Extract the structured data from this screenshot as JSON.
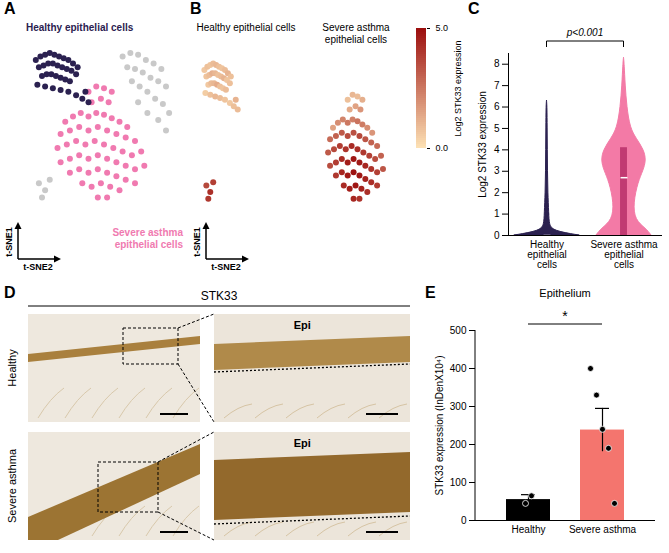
{
  "chart_data": [
    {
      "label": "A",
      "type": "scatter",
      "x_label": "t-SNE2",
      "y_label": "t-SNE1",
      "xlim": [
        0,
        100
      ],
      "ylim": [
        0,
        100
      ],
      "tick_labels": false,
      "series": [
        {
          "name": "Healthy epithelial cells",
          "color": "#2b2150",
          "x": [
            6,
            9,
            12,
            15,
            18,
            21,
            24,
            27,
            30,
            33,
            8,
            11,
            14,
            17,
            20,
            23,
            26,
            29,
            32,
            10,
            13,
            16,
            19,
            22,
            25,
            28,
            7,
            12,
            17,
            22,
            27,
            32,
            36,
            38,
            40
          ],
          "y": [
            90,
            92,
            93,
            94,
            93,
            92,
            91,
            90,
            88,
            86,
            86,
            87,
            88,
            88,
            87,
            86,
            85,
            84,
            82,
            81,
            82,
            82,
            81,
            80,
            79,
            78,
            76,
            75,
            74,
            73,
            72,
            70,
            68,
            72,
            66
          ]
        },
        {
          "name": "Severe asthma epithelial cells",
          "color": "#f07ab0",
          "x": [
            40,
            45,
            50,
            55,
            48,
            53,
            42,
            25,
            30,
            35,
            40,
            45,
            50,
            55,
            60,
            65,
            22,
            28,
            34,
            40,
            46,
            52,
            58,
            64,
            70,
            20,
            26,
            32,
            38,
            44,
            50,
            56,
            62,
            68,
            74,
            22,
            28,
            34,
            40,
            46,
            52,
            58,
            64,
            70,
            76,
            28,
            34,
            40,
            46,
            52,
            58,
            64,
            70,
            36,
            42,
            48,
            54,
            60,
            46,
            52
          ],
          "y": [
            72,
            75,
            74,
            72,
            68,
            66,
            66,
            55,
            58,
            60,
            58,
            60,
            59,
            57,
            55,
            52,
            48,
            50,
            52,
            50,
            52,
            50,
            48,
            46,
            44,
            40,
            42,
            44,
            42,
            44,
            42,
            40,
            38,
            36,
            38,
            32,
            34,
            36,
            34,
            36,
            34,
            32,
            30,
            28,
            30,
            26,
            28,
            26,
            28,
            26,
            24,
            22,
            20,
            20,
            18,
            20,
            18,
            16,
            12,
            12
          ]
        },
        {
          "name": null,
          "color": "#c9c9c9",
          "x": [
            62,
            67,
            72,
            77,
            82,
            87,
            65,
            70,
            75,
            80,
            85,
            90,
            68,
            73,
            78,
            83,
            88,
            92,
            72,
            78,
            85,
            90,
            8,
            12,
            10,
            15
          ],
          "y": [
            92,
            94,
            93,
            90,
            88,
            85,
            86,
            85,
            83,
            80,
            78,
            75,
            78,
            75,
            72,
            68,
            65,
            60,
            66,
            60,
            56,
            50,
            20,
            16,
            12,
            22
          ]
        }
      ]
    },
    {
      "label": "B",
      "type": "scatter",
      "x_label": "t-SNE2",
      "y_label": "t-SNE1",
      "xlim": [
        0,
        100
      ],
      "ylim": [
        0,
        100
      ],
      "tick_labels": false,
      "panels": [
        {
          "title": "Healthy epithelial cells",
          "x": [
            6,
            9,
            12,
            15,
            18,
            21,
            24,
            27,
            30,
            33,
            8,
            11,
            14,
            17,
            20,
            23,
            26,
            29,
            32,
            10,
            13,
            16,
            19,
            22,
            25,
            28,
            7,
            12,
            17,
            22,
            27,
            32,
            36,
            38,
            40,
            8,
            12,
            10,
            15
          ],
          "y": [
            90,
            92,
            93,
            94,
            93,
            92,
            91,
            90,
            88,
            86,
            86,
            87,
            88,
            88,
            87,
            86,
            85,
            84,
            82,
            81,
            82,
            82,
            81,
            80,
            79,
            78,
            76,
            75,
            74,
            73,
            72,
            70,
            68,
            72,
            66,
            20,
            16,
            12,
            22
          ],
          "values": [
            0.6,
            0.8,
            0.7,
            0.9,
            1.0,
            0.8,
            0.7,
            0.9,
            1.1,
            0.8,
            0.7,
            0.9,
            1.2,
            1.0,
            0.8,
            0.9,
            1.1,
            0.7,
            0.8,
            0.6,
            0.9,
            1.0,
            1.3,
            0.8,
            0.7,
            0.9,
            0.5,
            0.8,
            1.0,
            0.9,
            0.7,
            0.6,
            0.8,
            1.1,
            0.9,
            3.6,
            4.2,
            4.0,
            3.8
          ]
        },
        {
          "title": "Severe asthma epithelial cells",
          "x": [
            40,
            45,
            50,
            55,
            48,
            53,
            42,
            25,
            30,
            35,
            40,
            45,
            50,
            55,
            60,
            65,
            22,
            28,
            34,
            40,
            46,
            52,
            58,
            64,
            70,
            20,
            26,
            32,
            38,
            44,
            50,
            56,
            62,
            68,
            74,
            22,
            28,
            34,
            40,
            46,
            52,
            58,
            64,
            70,
            76,
            28,
            34,
            40,
            46,
            52,
            58,
            64,
            70,
            36,
            42,
            48,
            54,
            60,
            46,
            52
          ],
          "y": [
            72,
            75,
            74,
            72,
            68,
            66,
            66,
            55,
            58,
            60,
            58,
            60,
            59,
            57,
            55,
            52,
            48,
            50,
            52,
            50,
            52,
            50,
            48,
            46,
            44,
            40,
            42,
            44,
            42,
            44,
            42,
            40,
            38,
            36,
            38,
            32,
            34,
            36,
            34,
            36,
            34,
            32,
            30,
            28,
            30,
            26,
            28,
            26,
            28,
            26,
            24,
            22,
            20,
            20,
            18,
            20,
            18,
            16,
            12,
            12
          ],
          "values": [
            0.8,
            1.0,
            0.9,
            1.2,
            1.5,
            1.8,
            1.3,
            1.5,
            2.0,
            2.2,
            2.5,
            2.3,
            2.6,
            2.4,
            2.0,
            1.8,
            2.8,
            3.0,
            3.2,
            3.5,
            3.4,
            3.6,
            3.3,
            3.0,
            2.8,
            3.2,
            3.6,
            3.9,
            4.1,
            4.3,
            4.2,
            4.0,
            3.8,
            3.5,
            3.0,
            3.5,
            3.9,
            4.3,
            4.6,
            4.8,
            4.7,
            4.4,
            4.1,
            3.8,
            3.3,
            4.0,
            4.4,
            4.7,
            4.9,
            4.8,
            4.5,
            4.2,
            3.9,
            4.3,
            4.6,
            4.8,
            4.5,
            4.2,
            4.4,
            4.1
          ]
        }
      ],
      "colorbar": {
        "label": "Log2 STK33 expression",
        "range": [
          0,
          5
        ],
        "ticks": [
          {
            "value": 0,
            "label": "0.0"
          },
          {
            "value": 5,
            "label": "5.0"
          }
        ],
        "colors": [
          "#fde2b5",
          "#9b0d0d"
        ]
      }
    },
    {
      "label": "C",
      "type": "violin",
      "categories": [
        "Healthy epithelial cells",
        "Severe asthma epithelial cells"
      ],
      "y_label": "Log2 STK33 expression",
      "ylim": [
        0,
        8.5
      ],
      "yticks": [
        0,
        1,
        2,
        3,
        4,
        5,
        6,
        7,
        8
      ],
      "annotation": "p<0.001",
      "series": [
        {
          "color": "#2b2150",
          "box_color": "#2b2150",
          "density_y": [
            0,
            0.2,
            0.5,
            1,
            2,
            3,
            4,
            5,
            6,
            6.3
          ],
          "density_width": [
            1,
            0.2,
            0.08,
            0.07,
            0.04,
            0.03,
            0.025,
            0.02,
            0.015,
            0
          ],
          "q1": 0,
          "median": 0,
          "q3": 0.05,
          "outliers": [
            1
          ]
        },
        {
          "color": "#f37aa6",
          "box_color": "#c13a72",
          "density_y": [
            0,
            0.3,
            0.7,
            1.5,
            2.5,
            3,
            3.5,
            4,
            4.5,
            5,
            6,
            7,
            8,
            8.3
          ],
          "density_width": [
            0.85,
            0.7,
            0.35,
            0.3,
            0.45,
            0.6,
            0.7,
            0.62,
            0.4,
            0.2,
            0.1,
            0.05,
            0.02,
            0
          ],
          "q1": 0,
          "median": 2.7,
          "q3": 4.1,
          "outliers": []
        }
      ]
    },
    {
      "label": "D",
      "type": "image",
      "title": "STK33",
      "rows": [
        "Healthy",
        "Severe asthma"
      ],
      "annotation": "Epi"
    },
    {
      "label": "E",
      "type": "bar",
      "title": "Epithelium",
      "categories": [
        "Healthy",
        "Severe asthma"
      ],
      "values": [
        55,
        238
      ],
      "errors": [
        13,
        57
      ],
      "points": [
        [
          45,
          65
        ],
        [
          400,
          330,
          240,
          190,
          45
        ]
      ],
      "colors": [
        "#000000",
        "#f4756e"
      ],
      "y_label": "STK33 expression (InDenX10⁴)",
      "ylim": [
        0,
        500
      ],
      "yticks": [
        0,
        100,
        200,
        300,
        400,
        500
      ],
      "annotation": "*"
    }
  ]
}
